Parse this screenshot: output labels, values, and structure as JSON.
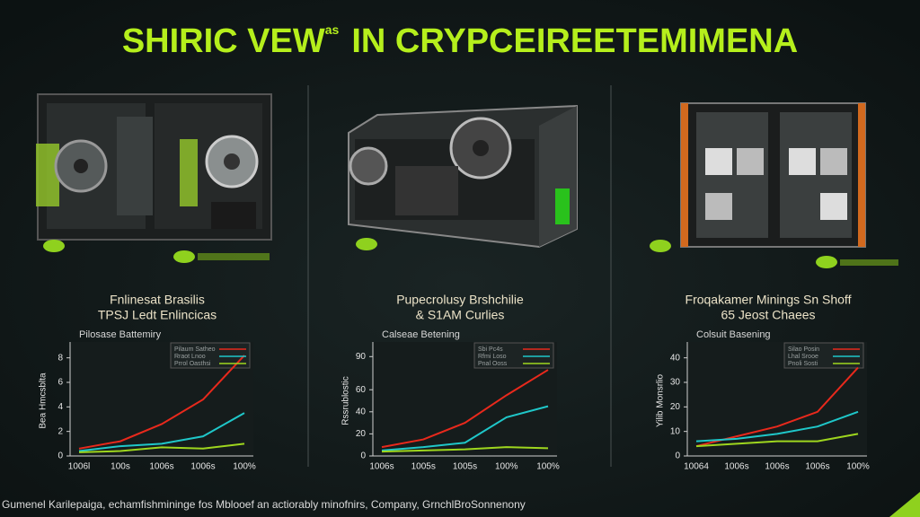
{
  "title_parts": [
    "SHIRIC VEW",
    "as",
    "IN CRYPCEIREETEMIMENA"
  ],
  "panels": [
    {
      "heading": [
        "Fnlinesat Brasilis",
        "TPSJ Ledt Enlincicas"
      ]
    },
    {
      "heading": [
        "Pupecrolusy Brshchilie",
        "& S1AM Curlies"
      ]
    },
    {
      "heading": [
        "Froqakamer Minings Sn Shoff",
        "65 Jeost Chaees"
      ]
    }
  ],
  "chart_data": [
    {
      "type": "line",
      "title": "Pilosase Battemiry",
      "ylabel": "Bea Hmcsblta",
      "categories": [
        "1006l",
        "100s",
        "1006s",
        "1006s",
        "100%"
      ],
      "series": [
        {
          "name": "Pilaum Satheo",
          "color": "#e8291c",
          "values": [
            0.6,
            1.2,
            2.6,
            4.6,
            8.2
          ]
        },
        {
          "name": "Rraot Lnoo",
          "color": "#1fc7c9",
          "values": [
            0.4,
            0.8,
            1.0,
            1.6,
            3.5
          ]
        },
        {
          "name": "Prrol Oasthsi",
          "color": "#9ed61e",
          "values": [
            0.3,
            0.4,
            0.7,
            0.6,
            1.0
          ]
        }
      ],
      "ylim": [
        0,
        9
      ],
      "yticks": [
        0,
        2,
        4,
        6,
        8
      ]
    },
    {
      "type": "line",
      "title": "Calseae Betening",
      "ylabel": "Rssrublostic",
      "categories": [
        "1006s",
        "1005s",
        "1005s",
        "100%",
        "100%"
      ],
      "series": [
        {
          "name": "Sbi Pc4s",
          "color": "#e8291c",
          "values": [
            8,
            15,
            30,
            55,
            78
          ]
        },
        {
          "name": "Rfmi Loso",
          "color": "#1fc7c9",
          "values": [
            5,
            8,
            12,
            35,
            45
          ]
        },
        {
          "name": "Pnal Ooss",
          "color": "#9ed61e",
          "values": [
            4,
            5,
            6,
            8,
            7
          ]
        }
      ],
      "ylim": [
        0,
        100
      ],
      "yticks": [
        0,
        20,
        40,
        60,
        90
      ]
    },
    {
      "type": "line",
      "title": "Colsuit Basening",
      "ylabel": "Yilib Monsrlio",
      "categories": [
        "10064",
        "1006s",
        "1006s",
        "1006s",
        "100%"
      ],
      "series": [
        {
          "name": "Silao Posin",
          "color": "#e8291c",
          "values": [
            4,
            8,
            12,
            18,
            36
          ]
        },
        {
          "name": "Lhal Srooe",
          "color": "#1fc7c9",
          "values": [
            6,
            7,
            9,
            12,
            18
          ]
        },
        {
          "name": "Pnoli Sosti",
          "color": "#9ed61e",
          "values": [
            4,
            5,
            6,
            6,
            9
          ]
        }
      ],
      "ylim": [
        0,
        45
      ],
      "yticks": [
        0,
        10,
        20,
        30,
        40
      ]
    }
  ],
  "footer": "Gumenel Karilepaiga, echamfishmininge fos Mblooef an actiorably minofnirs, Company, GrnchlBroSonnenony"
}
